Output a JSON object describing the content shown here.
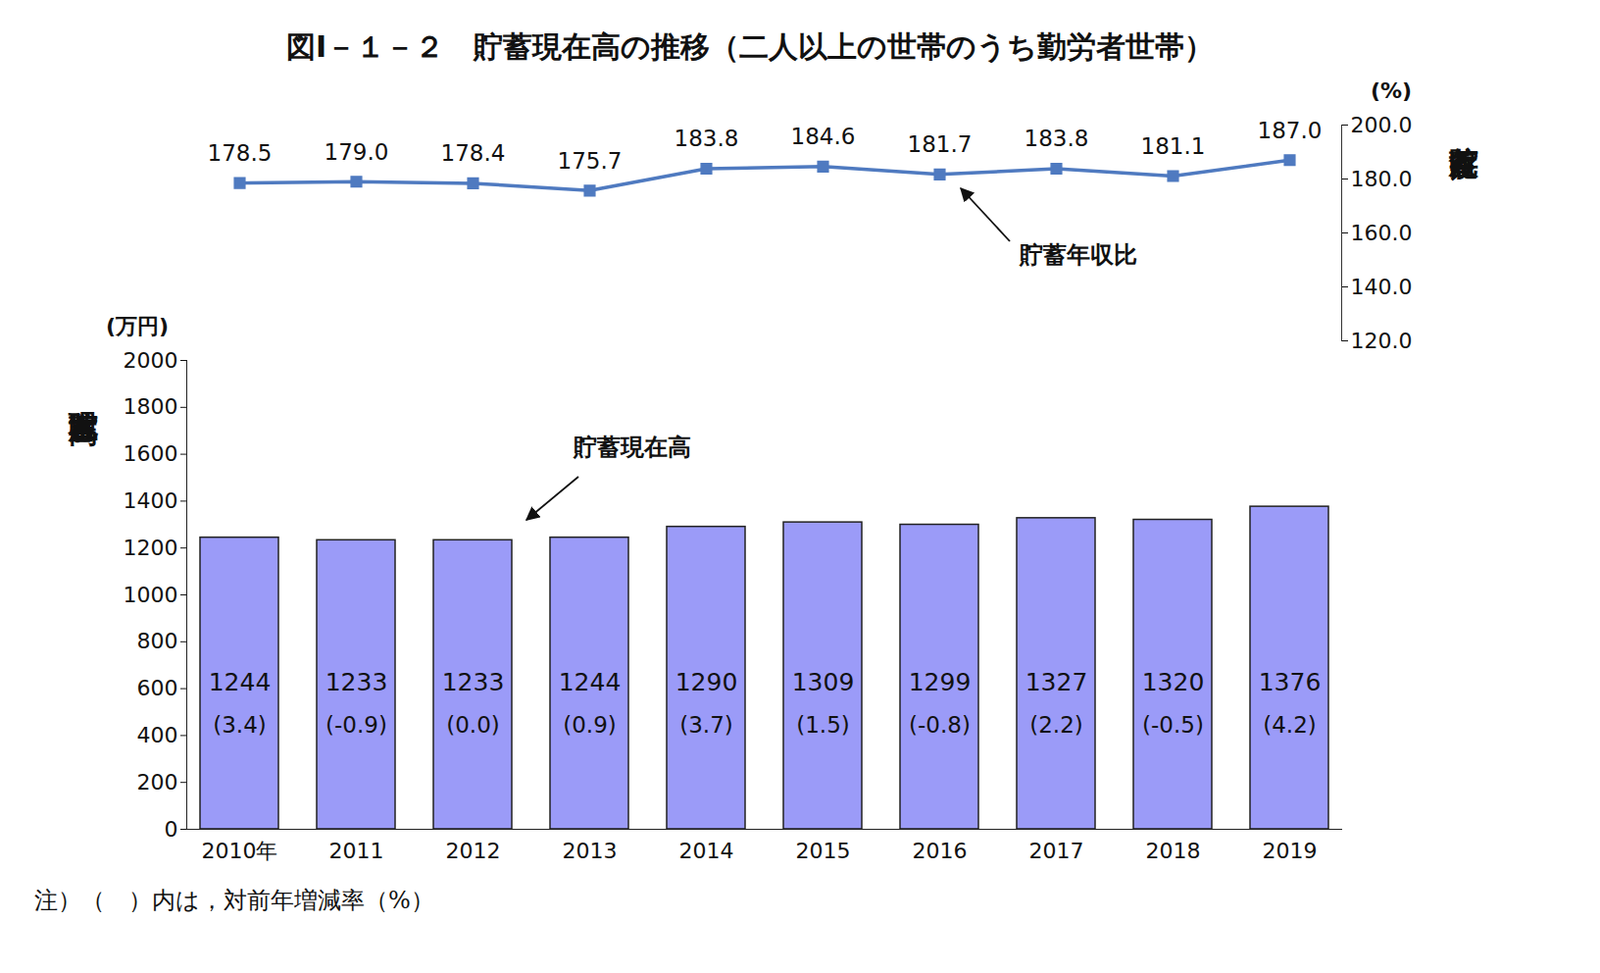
{
  "chart_data": [
    {
      "type": "line",
      "title": "図Ⅰ－１－２　貯蓄現在高の推移（二人以上の世帯のうち勤労者世帯）",
      "categories": [
        "2010年",
        "2011",
        "2012",
        "2013",
        "2014",
        "2015",
        "2016",
        "2017",
        "2018",
        "2019"
      ],
      "series": [
        {
          "name": "貯蓄年収比",
          "color": "#4f7ac0",
          "axis": "y2",
          "marker": "square",
          "values": [
            178.5,
            179.0,
            178.4,
            175.7,
            183.8,
            184.6,
            181.7,
            183.8,
            181.1,
            187.0
          ],
          "value_labels": [
            "178.5",
            "179.0",
            "178.4",
            "175.7",
            "183.8",
            "184.6",
            "181.7",
            "183.8",
            "181.1",
            "187.0"
          ]
        }
      ],
      "y2_label": "貯蓄年収比",
      "y2_unit": "(%)",
      "y2lim": [
        120,
        200
      ],
      "y2ticks": [
        {
          "value": 120,
          "label": "120.0"
        },
        {
          "value": 140,
          "label": "140.0"
        },
        {
          "value": 160,
          "label": "160.0"
        },
        {
          "value": 180,
          "label": "180.0"
        },
        {
          "value": 200,
          "label": "200.0"
        }
      ],
      "data_labels": true,
      "tick_labels": "y"
    },
    {
      "type": "bar",
      "categories": [
        "2010年",
        "2011",
        "2012",
        "2013",
        "2014",
        "2015",
        "2016",
        "2017",
        "2018",
        "2019"
      ],
      "values": [
        1244,
        1233,
        1233,
        1244,
        1290,
        1309,
        1299,
        1327,
        1320,
        1376
      ],
      "color": "#9b9bf8",
      "annotation": "貯蓄現在高",
      "y_label": "貯蓄現在高",
      "y_unit": "(万円)",
      "ylim": [
        0,
        2000
      ],
      "yticks": [
        0,
        200,
        400,
        600,
        800,
        1000,
        1200,
        1400,
        1600,
        1800,
        2000
      ],
      "growth_rates": [
        3.4,
        -0.9,
        0.0,
        0.9,
        3.7,
        1.5,
        -0.8,
        2.2,
        -0.5,
        4.2
      ],
      "growth_labels": [
        "(3.4)",
        "(-0.9)",
        "(0.0)",
        "(0.9)",
        "(3.7)",
        "(1.5)",
        "(-0.8)",
        "(2.2)",
        "(-0.5)",
        "(4.2)"
      ],
      "data_labels": true,
      "note": "注）（　）内は，対前年増減率（%）"
    }
  ]
}
